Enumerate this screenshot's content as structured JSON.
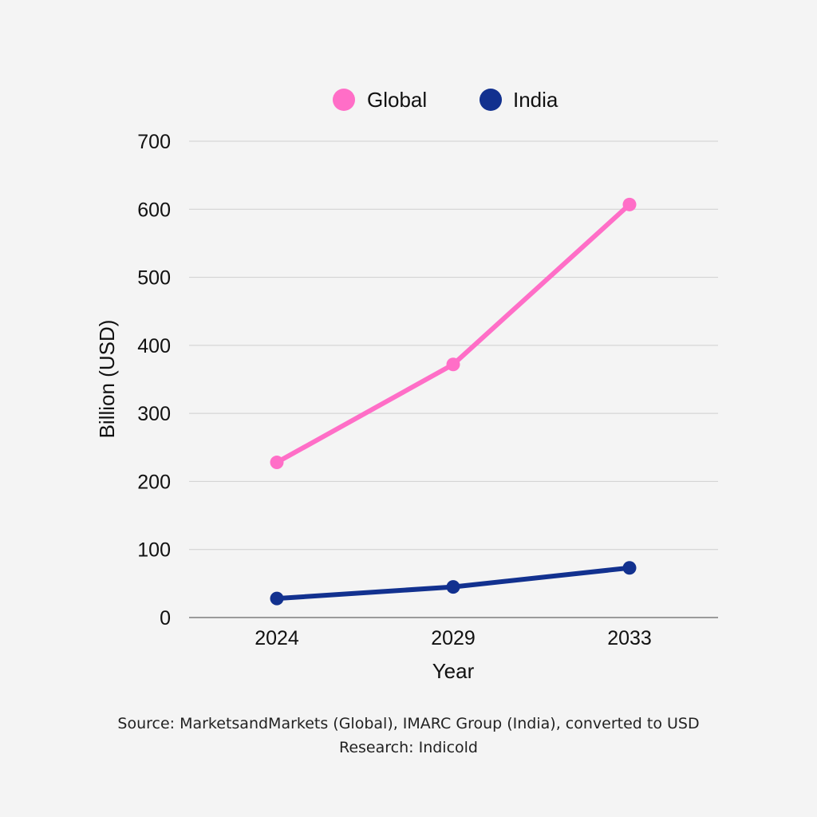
{
  "chart_data": {
    "type": "line",
    "categories": [
      "2024",
      "2029",
      "2033"
    ],
    "series": [
      {
        "name": "Global",
        "values": [
          228,
          372,
          607
        ],
        "color": "#ff6ec7"
      },
      {
        "name": "India",
        "values": [
          28,
          45,
          73
        ],
        "color": "#12318f"
      }
    ],
    "xlabel": "Year",
    "ylabel": "Billion (USD)",
    "ylim": [
      0,
      700
    ],
    "yticks": [
      "0",
      "100",
      "200",
      "300",
      "400",
      "500",
      "600",
      "700"
    ],
    "grid": true,
    "legend_position": "top-center"
  },
  "footer": {
    "source": "Source: MarketsandMarkets (Global), IMARC Group (India), converted to USD",
    "research": "Research: Indicold"
  }
}
